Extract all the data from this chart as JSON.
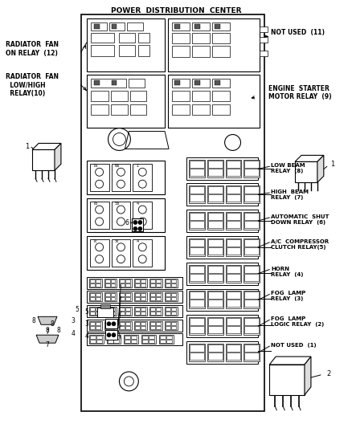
{
  "title": "POWER  DISTRIBUTION  CENTER",
  "bg_color": "#ffffff",
  "line_color": "#000000",
  "labels": {
    "radiator_fan_on": "RADIATOR  FAN\nON RELAY  (12)",
    "radiator_fan_low": "RADIATOR  FAN\n  LOW/HIGH\n  RELAY(10)",
    "not_used_11": "NOT USED  (11)",
    "engine_starter": "ENGINE  STARTER\nMOTOR RELAY  (9)",
    "low_beam": "LOW BEAM\nRELAY  (8)",
    "high_beam": "HIGH  BEAM\nRELAY  (7)",
    "auto_shut": "AUTOMATIC  SHUT\nDOWN RELAY  (6)",
    "ac_compressor": "A/C  COMPRESSOR\nCLUTCH RELAY(5)",
    "horn": "HORN\nRELAY  (4)",
    "fog_lamp": "FOG  LAMP\nRELAY  (3)",
    "fog_lamp_logic": "FOG  LAMP\nLOGIC RELAY  (2)",
    "not_used_1": "NOT USED  (1)"
  },
  "figsize": [
    4.38,
    5.33
  ],
  "dpi": 100
}
